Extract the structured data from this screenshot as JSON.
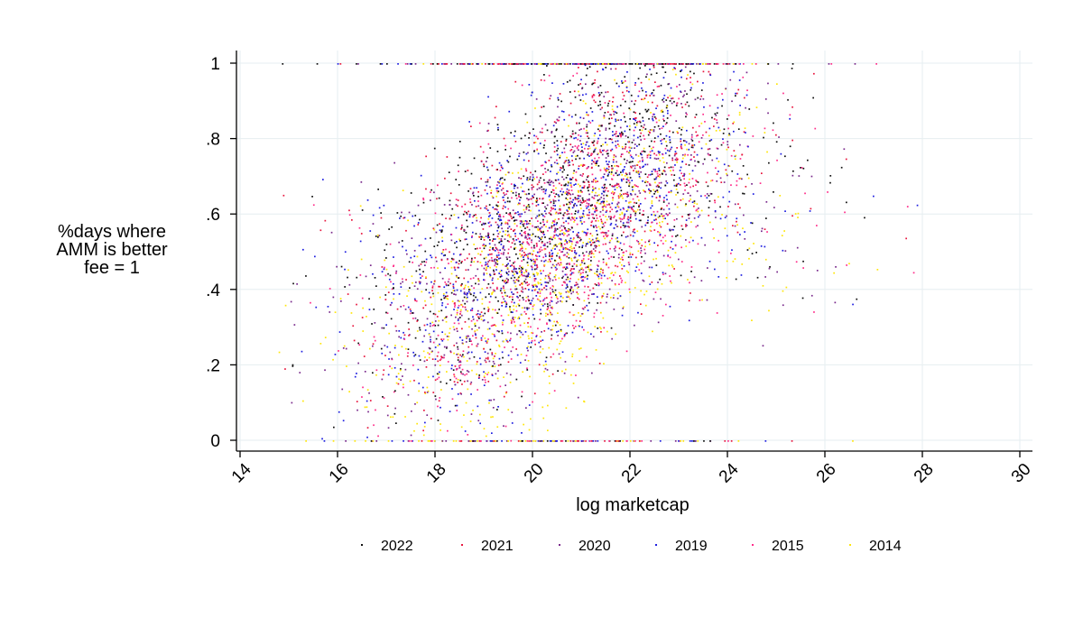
{
  "chart_data": {
    "type": "scatter",
    "title": "",
    "xlabel": "log marketcap",
    "ylabel_lines": [
      "%days where",
      "AMM is better",
      "fee = 1"
    ],
    "xlim": [
      14,
      30
    ],
    "ylim": [
      0,
      1
    ],
    "x_ticks": [
      {
        "value": 14,
        "label": "14"
      },
      {
        "value": 16,
        "label": "16"
      },
      {
        "value": 18,
        "label": "18"
      },
      {
        "value": 20,
        "label": "20"
      },
      {
        "value": 22,
        "label": "22"
      },
      {
        "value": 24,
        "label": "24"
      },
      {
        "value": 26,
        "label": "26"
      },
      {
        "value": 28,
        "label": "28"
      },
      {
        "value": 30,
        "label": "30"
      }
    ],
    "y_ticks": [
      {
        "value": 0,
        "label": "0"
      },
      {
        "value": 0.2,
        "label": ".2"
      },
      {
        "value": 0.4,
        "label": ".4"
      },
      {
        "value": 0.6,
        "label": ".6"
      },
      {
        "value": 0.8,
        "label": ".8"
      },
      {
        "value": 1,
        "label": "1"
      }
    ],
    "grid": true,
    "legend_position": "bottom",
    "series": [
      {
        "name": "2022",
        "color": "#111111"
      },
      {
        "name": "2021",
        "color": "#e8173f"
      },
      {
        "name": "2020",
        "color": "#7a2a8c"
      },
      {
        "name": "2019",
        "color": "#1e1ee0"
      },
      {
        "name": "2015",
        "color": "#ff2d8a"
      },
      {
        "name": "2014",
        "color": "#ffe60a"
      }
    ],
    "trend_summary": [
      {
        "x": 16,
        "y": 0.3
      },
      {
        "x": 18,
        "y": 0.32
      },
      {
        "x": 20,
        "y": 0.5
      },
      {
        "x": 22,
        "y": 0.68
      },
      {
        "x": 24,
        "y": 0.75
      },
      {
        "x": 26,
        "y": 0.6
      }
    ]
  }
}
